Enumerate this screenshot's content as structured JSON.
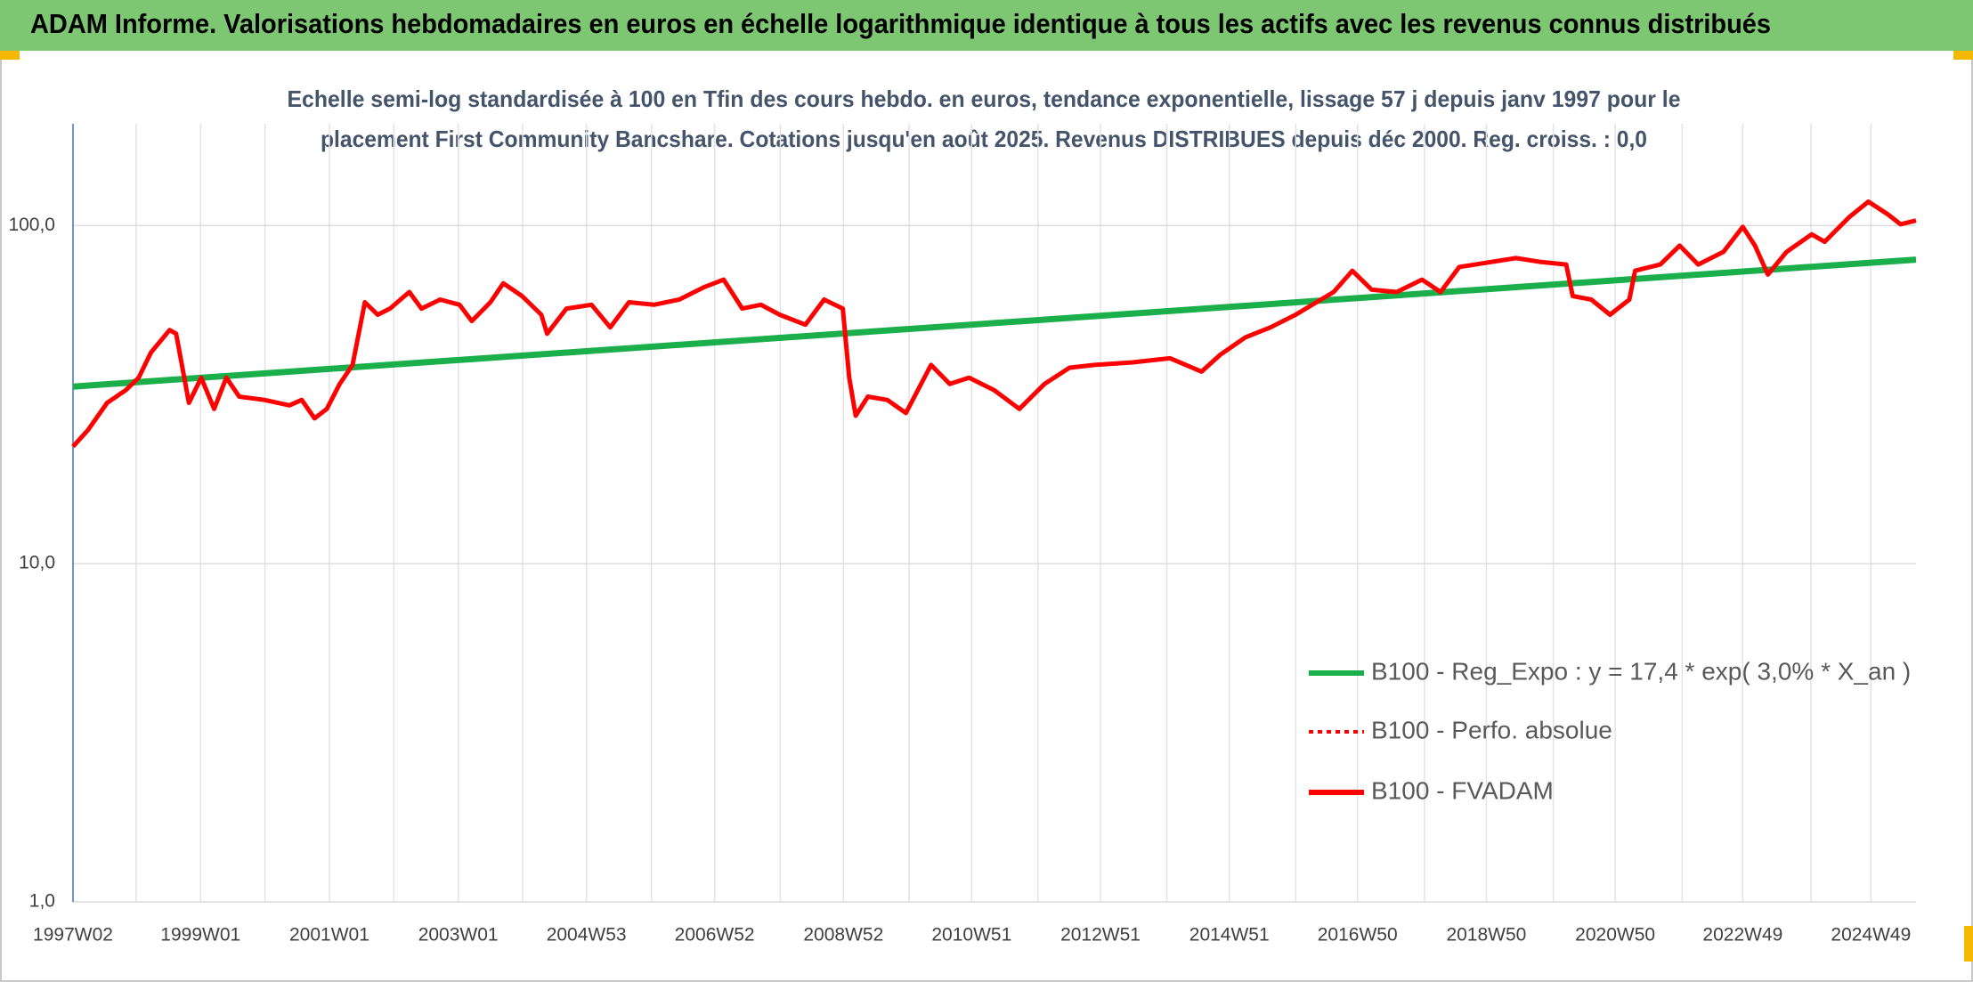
{
  "chart_data": {
    "type": "line",
    "title": "ADAM Informe. Valorisations hebdomadaires en euros en échelle logarithmique identique à tous les actifs avec les revenus connus distribués",
    "subtitle": [
      "Echelle semi-log standardisée à 100 en Tfin des cours hebdo. en euros, tendance exponentielle, lissage 57 j depuis janv 1997 pour le",
      "placement First Community Bancshare. Cotations jusqu'en août 2025. Revenus DISTRIBUES depuis déc 2000. Reg. croiss. : 0,0"
    ],
    "log_scale": true,
    "grid": true,
    "legend": "lower right",
    "xlim": [
      1997.02,
      2025.63
    ],
    "xticks": [
      {
        "value": 1997.02,
        "label": "1997W02"
      },
      {
        "value": 1999.0,
        "label": "1999W01"
      },
      {
        "value": 2001.0,
        "label": "2001W01"
      },
      {
        "value": 2003.0,
        "label": "2003W01"
      },
      {
        "value": 2004.99,
        "label": "2004W53"
      },
      {
        "value": 2006.98,
        "label": "2006W52"
      },
      {
        "value": 2008.98,
        "label": "2008W52"
      },
      {
        "value": 2010.97,
        "label": "2010W51"
      },
      {
        "value": 2012.97,
        "label": "2012W51"
      },
      {
        "value": 2014.97,
        "label": "2014W51"
      },
      {
        "value": 2016.96,
        "label": "2016W50"
      },
      {
        "value": 2018.96,
        "label": "2018W50"
      },
      {
        "value": 2020.96,
        "label": "2020W50"
      },
      {
        "value": 2022.94,
        "label": "2022W49"
      },
      {
        "value": 2024.93,
        "label": "2024W49"
      }
    ],
    "xminor": [
      1998,
      2000,
      2002,
      2004,
      2006,
      2008,
      2010,
      2012,
      2014,
      2016,
      2018,
      2020,
      2022,
      2024
    ],
    "ylim": [
      1,
      200
    ],
    "yticks": [
      {
        "value": 1,
        "label": "1,0"
      },
      {
        "value": 10,
        "label": "10,0"
      },
      {
        "value": 100,
        "label": "100,0"
      }
    ],
    "series": [
      {
        "name": "B100 - Reg_Expo : y = 17,4 * exp( 3,0% *  X_an )",
        "color": "#1aaf4b",
        "style": "solid",
        "x": [
          1997.02,
          2025.63
        ],
        "values": [
          33.4,
          79.3
        ]
      },
      {
        "name": "B100 - Perfo. absolue",
        "color": "#ff0000",
        "style": "dotted",
        "x": [],
        "values": []
      },
      {
        "name": "B100 - FVADAM",
        "color": "#ff0000",
        "style": "solid",
        "x": [
          1997.02,
          1997.25,
          1997.55,
          1997.84,
          1998.04,
          1998.23,
          1998.52,
          1998.62,
          1998.82,
          1999.01,
          1999.21,
          1999.4,
          1999.6,
          1999.99,
          2000.38,
          2000.57,
          2000.77,
          2000.96,
          2001.16,
          2001.36,
          2001.55,
          2001.75,
          2001.94,
          2002.24,
          2002.43,
          2002.72,
          2003.02,
          2003.21,
          2003.5,
          2003.7,
          2003.99,
          2004.29,
          2004.38,
          2004.68,
          2005.07,
          2005.36,
          2005.65,
          2006.04,
          2006.43,
          2006.82,
          2007.12,
          2007.41,
          2007.7,
          2007.99,
          2008.39,
          2008.68,
          2008.97,
          2009.07,
          2009.17,
          2009.36,
          2009.66,
          2009.95,
          2010.34,
          2010.63,
          2010.93,
          2011.32,
          2011.71,
          2012.1,
          2012.49,
          2012.88,
          2013.47,
          2014.05,
          2014.54,
          2014.83,
          2015.22,
          2015.61,
          2016.0,
          2016.59,
          2016.88,
          2017.18,
          2017.57,
          2017.96,
          2018.25,
          2018.54,
          2019.03,
          2019.42,
          2019.81,
          2020.2,
          2020.3,
          2020.59,
          2020.88,
          2021.18,
          2021.27,
          2021.66,
          2021.96,
          2022.25,
          2022.64,
          2022.94,
          2023.13,
          2023.33,
          2023.62,
          2024.01,
          2024.21,
          2024.6,
          2024.89,
          2025.19,
          2025.39,
          2025.63
        ],
        "values": [
          22.2,
          24.8,
          29.9,
          32.6,
          35.5,
          42.1,
          49.1,
          47.9,
          29.9,
          35.5,
          28.7,
          35.5,
          31.2,
          30.5,
          29.4,
          30.5,
          26.9,
          28.7,
          34.0,
          38.7,
          59.3,
          54.5,
          56.8,
          63.6,
          56.8,
          60.4,
          58.3,
          52.2,
          59.3,
          67.5,
          61.9,
          54.5,
          47.9,
          56.8,
          58.3,
          50.0,
          59.3,
          58.3,
          60.4,
          65.8,
          69.2,
          56.8,
          58.3,
          54.5,
          50.9,
          60.4,
          56.8,
          35.5,
          27.4,
          31.2,
          30.5,
          27.9,
          38.7,
          34.0,
          35.5,
          32.6,
          28.7,
          34.0,
          38.0,
          38.7,
          39.4,
          40.5,
          37.0,
          41.5,
          46.7,
          50.0,
          54.5,
          63.6,
          73.5,
          64.6,
          63.6,
          69.2,
          63.6,
          75.4,
          78.0,
          80.1,
          78.0,
          76.7,
          61.9,
          60.4,
          54.5,
          60.4,
          73.5,
          76.7,
          87.2,
          76.7,
          83.6,
          99.1,
          87.2,
          71.6,
          83.6,
          94.2,
          89.5,
          106.2,
          117.7,
          108.0,
          100.9,
          103.5
        ]
      }
    ]
  }
}
